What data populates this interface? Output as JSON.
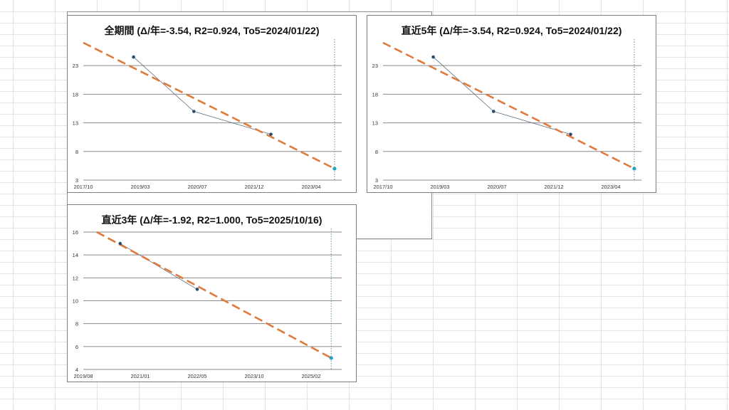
{
  "chart_data": [
    {
      "type": "line",
      "title": "全期間 (Δ/年=-3.54, R2=0.924, To5=2024/01/22)",
      "x_tick_labels": [
        "2017/10",
        "2019/03",
        "2020/07",
        "2021/12",
        "2023/04"
      ],
      "y_tick_labels": [
        "3",
        "8",
        "13",
        "18",
        "23"
      ],
      "ylim": [
        3,
        27
      ],
      "grid": true,
      "series": [
        {
          "style": "solid-markers",
          "color": "#2a4d6e",
          "points": [
            {
              "x": "2019/01",
              "y": 24.5
            },
            {
              "x": "2020/07",
              "y": 15
            },
            {
              "x": "2022/06",
              "y": 11
            }
          ]
        },
        {
          "style": "dashed-trend",
          "color": "#e07a3a",
          "points": [
            {
              "x": "2017/10",
              "y": 27
            },
            {
              "x": "2024/01",
              "y": 5
            }
          ]
        },
        {
          "style": "target-marker",
          "color": "#1fa3c8",
          "points": [
            {
              "x": "2024/01",
              "y": 5
            }
          ]
        }
      ]
    },
    {
      "type": "line",
      "title": "直近5年 (Δ/年=-3.54, R2=0.924, To5=2024/01/22)",
      "x_tick_labels": [
        "2017/10",
        "2019/03",
        "2020/07",
        "2021/12",
        "2023/04"
      ],
      "y_tick_labels": [
        "3",
        "8",
        "13",
        "18",
        "23"
      ],
      "ylim": [
        3,
        27
      ],
      "grid": true,
      "series": [
        {
          "style": "solid-markers",
          "color": "#2a4d6e",
          "points": [
            {
              "x": "2019/01",
              "y": 24.5
            },
            {
              "x": "2020/07",
              "y": 15
            },
            {
              "x": "2022/06",
              "y": 11
            }
          ]
        },
        {
          "style": "dashed-trend",
          "color": "#e07a3a",
          "points": [
            {
              "x": "2017/10",
              "y": 27
            },
            {
              "x": "2024/01",
              "y": 5
            }
          ]
        },
        {
          "style": "target-marker",
          "color": "#1fa3c8",
          "points": [
            {
              "x": "2024/01",
              "y": 5
            }
          ]
        }
      ]
    },
    {
      "type": "line",
      "title": "直近3年 (Δ/年=-1.92, R2=1.000, To5=2025/10/16)",
      "x_tick_labels": [
        "2019/08",
        "2021/01",
        "2022/05",
        "2023/10",
        "2025/02"
      ],
      "y_tick_labels": [
        "4",
        "6",
        "8",
        "10",
        "12",
        "14",
        "16"
      ],
      "ylim": [
        4,
        16
      ],
      "grid": true,
      "series": [
        {
          "style": "solid-markers",
          "color": "#2a4d6e",
          "points": [
            {
              "x": "2020/07",
              "y": 15
            },
            {
              "x": "2022/06",
              "y": 11
            }
          ]
        },
        {
          "style": "dashed-trend",
          "color": "#e07a3a",
          "points": [
            {
              "x": "2019/12",
              "y": 16
            },
            {
              "x": "2025/10",
              "y": 5
            }
          ]
        },
        {
          "style": "target-marker",
          "color": "#1fa3c8",
          "points": [
            {
              "x": "2025/10",
              "y": 5
            }
          ]
        }
      ]
    }
  ]
}
